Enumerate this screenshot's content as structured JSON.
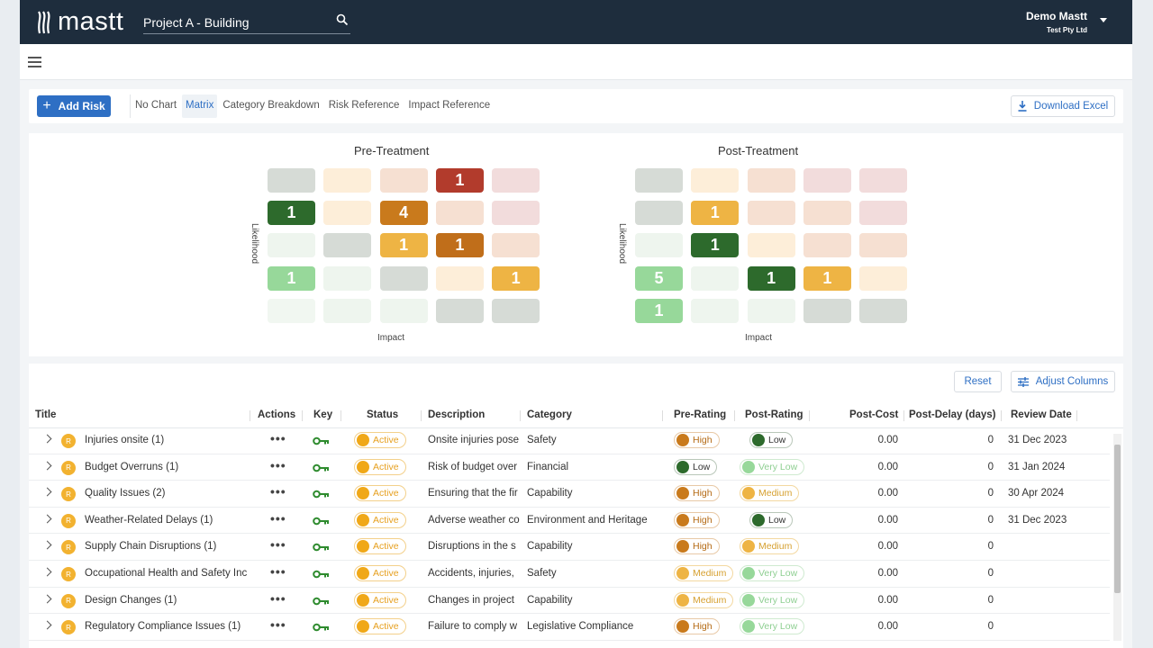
{
  "app": {
    "logo_text": "mastt",
    "project": "Project A - Building",
    "user_name": "Demo Mastt",
    "user_org": "Test Pty Ltd"
  },
  "toolbar": {
    "add_risk": "Add Risk",
    "tabs": [
      "No Chart",
      "Matrix",
      "Category Breakdown",
      "Risk Reference",
      "Impact Reference"
    ],
    "active_tab": "Matrix",
    "download": "Download Excel"
  },
  "matrix": {
    "pre": {
      "title": "Pre-Treatment",
      "ylabel": "Likelihood",
      "xlabel": "Impact",
      "values": [
        [
          "",
          "",
          "",
          "1",
          ""
        ],
        [
          "1",
          "",
          "4",
          "",
          ""
        ],
        [
          "",
          "",
          "1",
          "1",
          ""
        ],
        [
          "1",
          "",
          "",
          "",
          "1"
        ],
        [
          "",
          "",
          "",
          "",
          ""
        ]
      ]
    },
    "post": {
      "title": "Post-Treatment",
      "ylabel": "Likelihood",
      "xlabel": "Impact",
      "values": [
        [
          "",
          "",
          "",
          "",
          ""
        ],
        [
          "",
          "1",
          "",
          "",
          ""
        ],
        [
          "",
          "1",
          "",
          "",
          ""
        ],
        [
          "5",
          "",
          "1",
          "1",
          ""
        ],
        [
          "1",
          "",
          "",
          "",
          ""
        ]
      ]
    },
    "colors": {
      "pre": [
        [
          "#d6dbd6",
          "#fdeed9",
          "#f6e0d2",
          "#b23b2c",
          "#f2dcdc"
        ],
        [
          "#2d6a2c",
          "#fdeed9",
          "#c97a1c",
          "#f6e0d2",
          "#f2dcdc"
        ],
        [
          "#eef5ee",
          "#d6dbd6",
          "#eeb444",
          "#c06e1a",
          "#f6e0d2"
        ],
        [
          "#97d89a",
          "#eef5ee",
          "#d6dbd6",
          "#fdeed9",
          "#eeb444"
        ],
        [
          "#f1f7f1",
          "#eef5ee",
          "#eef5ee",
          "#d6dbd6",
          "#d6dbd6"
        ]
      ],
      "post": [
        [
          "#d6dbd6",
          "#fdeed9",
          "#f6e0d2",
          "#f2dcdc",
          "#f2dcdc"
        ],
        [
          "#d6dbd6",
          "#eeb444",
          "#f6e0d2",
          "#f6e0d2",
          "#f2dcdc"
        ],
        [
          "#eef5ee",
          "#2d6a2c",
          "#fdeed9",
          "#f6e0d2",
          "#f6e0d2"
        ],
        [
          "#97d89a",
          "#eef5ee",
          "#2d6a2c",
          "#eeb444",
          "#fdeed9"
        ],
        [
          "#97d89a",
          "#eef5ee",
          "#eef5ee",
          "#d6dbd6",
          "#d6dbd6"
        ]
      ]
    }
  },
  "table": {
    "reset": "Reset",
    "adjust": "Adjust Columns",
    "columns": [
      "Title",
      "Actions",
      "Key",
      "Status",
      "Description",
      "Category",
      "Pre-Rating",
      "Post-Rating",
      "Post-Cost",
      "Post-Delay (days)",
      "Review Date"
    ],
    "rows": [
      {
        "badge": "R",
        "title": "Injuries onsite  (1)",
        "actions": "•••",
        "status": "Active",
        "description": "Onsite injuries pose",
        "category": "Safety",
        "pre": "High",
        "post": "Low",
        "cost": "0.00",
        "delay": "0",
        "review": "31 Dec 2023"
      },
      {
        "badge": "R",
        "title": "Budget Overruns  (1)",
        "actions": "•••",
        "status": "Active",
        "description": "Risk of budget over",
        "category": "Financial",
        "pre": "Low",
        "post": "Very Low",
        "cost": "0.00",
        "delay": "0",
        "review": "31 Jan 2024"
      },
      {
        "badge": "R",
        "title": "Quality Issues  (2)",
        "actions": "•••",
        "status": "Active",
        "description": "Ensuring that the fir",
        "category": "Capability",
        "pre": "High",
        "post": "Medium",
        "cost": "0.00",
        "delay": "0",
        "review": "30 Apr 2024"
      },
      {
        "badge": "R",
        "title": "Weather-Related Delays  (1)",
        "actions": "•••",
        "status": "Active",
        "description": "Adverse weather co",
        "category": "Environment and Heritage",
        "pre": "High",
        "post": "Low",
        "cost": "0.00",
        "delay": "0",
        "review": "31 Dec 2023"
      },
      {
        "badge": "R",
        "title": "Supply Chain Disruptions  (1)",
        "actions": "•••",
        "status": "Active",
        "description": "Disruptions in the s",
        "category": "Capability",
        "pre": "High",
        "post": "Medium",
        "cost": "0.00",
        "delay": "0",
        "review": ""
      },
      {
        "badge": "R",
        "title": "Occupational Health and Safety Inc",
        "actions": "•••",
        "status": "Active",
        "description": "Accidents, injuries,",
        "category": "Safety",
        "pre": "Medium",
        "post": "Very Low",
        "cost": "0.00",
        "delay": "0",
        "review": ""
      },
      {
        "badge": "R",
        "title": "Design Changes  (1)",
        "actions": "•••",
        "status": "Active",
        "description": "Changes in project",
        "category": "Capability",
        "pre": "Medium",
        "post": "Very Low",
        "cost": "0.00",
        "delay": "0",
        "review": ""
      },
      {
        "badge": "R",
        "title": "Regulatory Compliance Issues  (1)",
        "actions": "•••",
        "status": "Active",
        "description": "Failure to comply w",
        "category": "Legislative Compliance",
        "pre": "High",
        "post": "Very Low",
        "cost": "0.00",
        "delay": "0",
        "review": ""
      }
    ],
    "rating_colors": {
      "High": {
        "dot": "#c97a1c",
        "border": "#e8c9a6",
        "text": "#b46a14"
      },
      "Medium": {
        "dot": "#eeb444",
        "border": "#f3d8a0",
        "text": "#d6a030"
      },
      "Low": {
        "dot": "#2d6a2c",
        "border": "#b9c7b9",
        "text": "#333333"
      },
      "Very Low": {
        "dot": "#97d89a",
        "border": "#cfead0",
        "text": "#8fcf92"
      }
    }
  }
}
